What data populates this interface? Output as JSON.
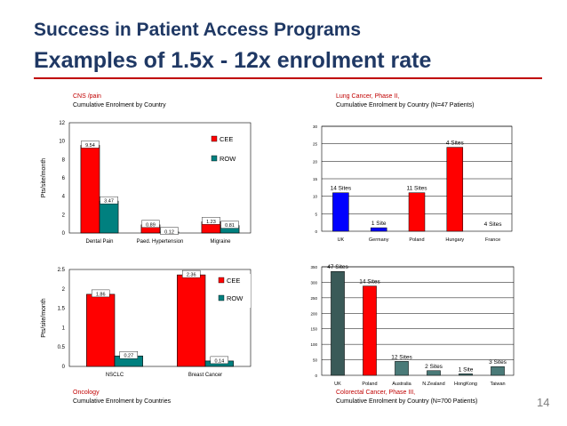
{
  "slide": {
    "title_line1": "Success in Patient Access Programs",
    "title_line2": "Examples of 1.5x - 12x enrolment rate",
    "page_number": "14",
    "title_color": "#1f3864",
    "accent_color": "#c00000"
  },
  "captions": {
    "cns_area": "CNS /pain",
    "cns_sub": "Cumulative Enrolment by Country",
    "lung_area": "Lung Cancer, Phase II,",
    "lung_sub": "Cumulative Enrolment by Country (N=47 Patients)",
    "onc_area": "Oncology",
    "onc_sub": "Cumulative Enrolment by Countries",
    "colo_area": "Colorectal Cancer, Phase III,",
    "colo_sub": "Cumulative Enrolment by Country (N=700 Patients)"
  },
  "chart_data": [
    {
      "type": "bar",
      "title": "CNS /pain – Cumulative Enrolment by Country",
      "ylabel": "Pts/site/month",
      "categories": [
        "Dental Pain",
        "Paed. Hypertension",
        "Migraine"
      ],
      "series": [
        {
          "name": "CEE",
          "color": "#ff0000",
          "values": [
            9.54,
            0.89,
            1.23
          ],
          "labels": [
            "9.54",
            "0.89",
            "1.23"
          ]
        },
        {
          "name": "ROW",
          "color": "#00807f",
          "values": [
            3.47,
            0.12,
            0.81
          ],
          "labels": [
            "3.47",
            "0.12",
            "0.81"
          ]
        }
      ],
      "ylim": [
        0,
        12
      ],
      "yticks": [
        0,
        2,
        4,
        6,
        8,
        10,
        12
      ],
      "ytick_labels": [
        "0",
        "2",
        "4",
        "6",
        "8",
        "10",
        "12"
      ],
      "legend": "right"
    },
    {
      "type": "bar",
      "title": "Lung Cancer, Phase II – Cumulative Enrolment by Country (N=47 Patients)",
      "categories": [
        "UK",
        "Germany",
        "Poland",
        "Hungary",
        "France"
      ],
      "values": [
        11,
        1,
        11,
        24,
        0
      ],
      "colors": [
        "#0000ff",
        "#0000ff",
        "#ff0000",
        "#ff0000",
        "#ff0000"
      ],
      "annotations": [
        "14 Sites",
        "1 Site",
        "11 Sites",
        "4 Sites",
        "4 Sites"
      ],
      "ylim": [
        0,
        30
      ],
      "yticks": [
        0,
        5,
        10,
        15,
        20,
        25,
        30
      ],
      "ytick_labels": [
        "0",
        "5",
        "10",
        "15",
        "20",
        "25",
        "30"
      ]
    },
    {
      "type": "bar",
      "title": "Oncology – Cumulative Enrolment by Countries",
      "ylabel": "Pts/site/month",
      "categories": [
        "NSCLC",
        "Breast Cancer"
      ],
      "series": [
        {
          "name": "CEE",
          "color": "#ff0000",
          "values": [
            1.86,
            2.36
          ],
          "labels": [
            "1.86",
            "2.36"
          ]
        },
        {
          "name": "ROW",
          "color": "#00807f",
          "values": [
            0.27,
            0.14
          ],
          "labels": [
            "0.27",
            "0.14"
          ]
        }
      ],
      "ylim": [
        0,
        2.5
      ],
      "yticks": [
        0,
        0.5,
        1,
        1.5,
        2,
        2.5
      ],
      "ytick_labels": [
        "0",
        "0.5",
        "1",
        "1.5",
        "2",
        "2.5"
      ],
      "legend": "right"
    },
    {
      "type": "bar",
      "title": "Colorectal Cancer, Phase III – Cumulative Enrolment by Country (N=700 Patients)",
      "categories": [
        "UK",
        "Poland",
        "Australia",
        "N.Zealand",
        "HongKong",
        "Taiwan"
      ],
      "values": [
        335,
        288,
        45,
        15,
        5,
        28
      ],
      "colors": [
        "#3a5a58",
        "#ff0000",
        "#4a7a78",
        "#4a7a78",
        "#4a7a78",
        "#4a7a78"
      ],
      "annotations": [
        "47 Sites",
        "14 Sites",
        "12 Sites",
        "2 Sites",
        "1 Site",
        "3 Sites"
      ],
      "ylim": [
        0,
        350
      ],
      "yticks": [
        0,
        50,
        100,
        150,
        200,
        250,
        300,
        350
      ],
      "ytick_labels": [
        "0",
        "50",
        "100",
        "150",
        "200",
        "250",
        "300",
        "350"
      ]
    }
  ]
}
